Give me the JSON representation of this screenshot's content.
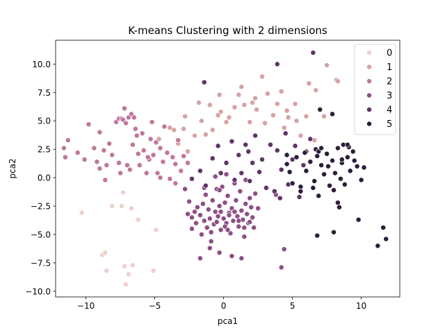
{
  "chart_data": {
    "type": "scatter",
    "title": "K-means Clustering with 2 dimensions",
    "xlabel": "pca1",
    "ylabel": "pca2",
    "xlim": [
      -12.2,
      12.8
    ],
    "ylim": [
      -10.5,
      12.1
    ],
    "xticks": [
      -10,
      -5,
      0,
      5,
      10
    ],
    "yticks": [
      -10.0,
      -7.5,
      -5.0,
      -2.5,
      0.0,
      2.5,
      5.0,
      7.5,
      10.0
    ],
    "xtick_labels": [
      "−10",
      "−5",
      "0",
      "5",
      "10"
    ],
    "ytick_labels": [
      "−10.0",
      "−7.5",
      "−5.0",
      "−2.5",
      "0.0",
      "2.5",
      "5.0",
      "7.5",
      "10.0"
    ],
    "grid": false,
    "legend_position": "top-right",
    "series": [
      {
        "name": "0",
        "color": "#edd1cb",
        "points": [
          [
            -10.3,
            -3.1
          ],
          [
            -8.8,
            -6.8
          ],
          [
            -8.6,
            -6.6
          ],
          [
            -8.5,
            -8.2
          ],
          [
            -8.1,
            -2.5
          ],
          [
            -7.4,
            -2.5
          ],
          [
            -7.3,
            -1.3
          ],
          [
            -7.2,
            -7.8
          ],
          [
            -7.1,
            -9.4
          ],
          [
            -6.9,
            -8.5
          ],
          [
            -6.7,
            -2.7
          ],
          [
            -6.6,
            -7.7
          ],
          [
            -6.2,
            -3.7
          ],
          [
            -5.1,
            -8.2
          ],
          [
            -4.9,
            -4.6
          ]
        ]
      },
      {
        "name": "1",
        "color": "#d8a2a2",
        "points": [
          [
            -4.7,
            3.4
          ],
          [
            -3.9,
            4.4
          ],
          [
            -3.6,
            4.2
          ],
          [
            -3.3,
            3.0
          ],
          [
            -2.9,
            4.3
          ],
          [
            -2.8,
            5.4
          ],
          [
            -2.6,
            2.3
          ],
          [
            -2.1,
            3.7
          ],
          [
            -1.8,
            6.6
          ],
          [
            -1.6,
            5.0
          ],
          [
            -1.3,
            3.8
          ],
          [
            -1.0,
            6.4
          ],
          [
            -0.8,
            4.2
          ],
          [
            -0.4,
            5.5
          ],
          [
            -0.2,
            5.8
          ],
          [
            -0.3,
            7.3
          ],
          [
            0.2,
            4.9
          ],
          [
            0.4,
            5.3
          ],
          [
            0.8,
            6.2
          ],
          [
            1.1,
            7.3
          ],
          [
            1.3,
            8.0
          ],
          [
            1.5,
            6.4
          ],
          [
            1.9,
            4.9
          ],
          [
            2.1,
            6.6
          ],
          [
            2.3,
            7.0
          ],
          [
            2.4,
            6.0
          ],
          [
            2.8,
            8.9
          ],
          [
            3.0,
            4.8
          ],
          [
            3.2,
            7.4
          ],
          [
            3.6,
            5.5
          ],
          [
            3.9,
            6.5
          ],
          [
            4.2,
            7.6
          ],
          [
            4.4,
            4.4
          ],
          [
            4.6,
            5.9
          ],
          [
            4.7,
            5.3
          ],
          [
            5.2,
            6.5
          ],
          [
            5.3,
            5.0
          ],
          [
            5.6,
            3.7
          ],
          [
            6.0,
            5.4
          ],
          [
            6.2,
            8.3
          ],
          [
            6.6,
            3.3
          ],
          [
            6.7,
            7.7
          ],
          [
            7.3,
            5.4
          ],
          [
            7.5,
            9.9
          ],
          [
            8.2,
            8.6
          ],
          [
            8.3,
            8.5
          ]
        ]
      },
      {
        "name": "2",
        "color": "#c0779a",
        "points": [
          [
            -11.6,
            2.6
          ],
          [
            -11.5,
            1.8
          ],
          [
            -11.3,
            3.3
          ],
          [
            -10.6,
            2.2
          ],
          [
            -10.1,
            1.6
          ],
          [
            -9.8,
            4.7
          ],
          [
            -9.4,
            2.6
          ],
          [
            -9.2,
            1.4
          ],
          [
            -9.0,
            4.0
          ],
          [
            -8.7,
            2.4
          ],
          [
            -8.5,
            1.1
          ],
          [
            -8.3,
            3.0
          ],
          [
            -8.1,
            2.0
          ],
          [
            -7.8,
            4.9
          ],
          [
            -7.6,
            5.2
          ],
          [
            -7.4,
            5.2
          ],
          [
            -7.3,
            5.1
          ],
          [
            -7.2,
            6.1
          ],
          [
            -7.1,
            4.8
          ],
          [
            -7.0,
            1.1
          ],
          [
            -6.9,
            5.3
          ],
          [
            -6.7,
            5.6
          ],
          [
            -6.6,
            2.9
          ],
          [
            -6.5,
            5.3
          ],
          [
            -6.4,
            4.3
          ],
          [
            -6.2,
            2.1
          ],
          [
            -6.1,
            1.1
          ],
          [
            -5.9,
            3.9
          ],
          [
            -5.8,
            2.4
          ],
          [
            -5.6,
            0.4
          ],
          [
            -5.4,
            1.6
          ],
          [
            -5.3,
            3.4
          ],
          [
            -5.1,
            2.0
          ],
          [
            -4.9,
            3.1
          ],
          [
            -4.8,
            0.4
          ],
          [
            -4.6,
            2.6
          ],
          [
            -4.4,
            1.4
          ],
          [
            -4.3,
            4.5
          ],
          [
            -4.1,
            2.2
          ],
          [
            -3.9,
            -0.1
          ],
          [
            -3.7,
            1.8
          ],
          [
            -3.5,
            1.2
          ],
          [
            -3.3,
            3.3
          ],
          [
            -3.1,
            0.6
          ],
          [
            -2.9,
            1.9
          ],
          [
            -7.6,
            1.3
          ],
          [
            -6.8,
            0.7
          ],
          [
            -5.5,
            1.8
          ],
          [
            -8.6,
            -0.2
          ],
          [
            -9.0,
            0.8
          ],
          [
            -4.6,
            0.0
          ],
          [
            -3.5,
            -0.5
          ],
          [
            -5.2,
            4.9
          ],
          [
            -6.3,
            3.7
          ],
          [
            -7.5,
            0.4
          ],
          [
            -2.6,
            1.3
          ]
        ]
      },
      {
        "name": "3",
        "color": "#8e4f84",
        "points": [
          [
            -2.8,
            -1.0
          ],
          [
            -2.5,
            -2.1
          ],
          [
            -2.3,
            -3.5
          ],
          [
            -2.1,
            -3.0
          ],
          [
            -2.0,
            -4.0
          ],
          [
            -1.9,
            -2.6
          ],
          [
            -1.7,
            -3.3
          ],
          [
            -1.6,
            -5.0
          ],
          [
            -1.5,
            -2.3
          ],
          [
            -1.4,
            -3.8
          ],
          [
            -1.3,
            -1.5
          ],
          [
            -1.2,
            -4.4
          ],
          [
            -1.1,
            -2.8
          ],
          [
            -1.0,
            -3.6
          ],
          [
            -0.9,
            -5.6
          ],
          [
            -0.8,
            -2.0
          ],
          [
            -0.7,
            -4.1
          ],
          [
            -0.6,
            -3.0
          ],
          [
            -0.5,
            -1.0
          ],
          [
            -0.4,
            -3.4
          ],
          [
            -0.3,
            -2.5
          ],
          [
            -0.2,
            -4.6
          ],
          [
            -0.1,
            -0.8
          ],
          [
            0.0,
            -3.6
          ],
          [
            0.1,
            -2.2
          ],
          [
            0.2,
            -4.0
          ],
          [
            0.3,
            -1.6
          ],
          [
            0.4,
            -3.1
          ],
          [
            0.5,
            -4.9
          ],
          [
            0.6,
            -2.7
          ],
          [
            0.7,
            -3.8
          ],
          [
            0.8,
            -0.5
          ],
          [
            0.9,
            -2.0
          ],
          [
            1.0,
            -3.4
          ],
          [
            1.1,
            -4.3
          ],
          [
            1.2,
            -1.2
          ],
          [
            1.3,
            -2.9
          ],
          [
            1.4,
            -3.7
          ],
          [
            1.5,
            -5.2
          ],
          [
            1.6,
            -2.3
          ],
          [
            1.7,
            -3.2
          ],
          [
            1.8,
            -4.0
          ],
          [
            1.9,
            -1.8
          ],
          [
            2.0,
            -2.6
          ],
          [
            2.1,
            -3.5
          ],
          [
            2.2,
            -4.4
          ],
          [
            2.3,
            -1.4
          ],
          [
            -0.3,
            -6.6
          ],
          [
            0.6,
            -6.9
          ],
          [
            1.3,
            -7.1
          ],
          [
            -1.7,
            -7.1
          ],
          [
            -1.0,
            -6.2
          ],
          [
            0.1,
            -4.3
          ],
          [
            -0.5,
            -3.9
          ],
          [
            0.4,
            -3.3
          ],
          [
            0.8,
            -3.0
          ],
          [
            1.1,
            -3.8
          ],
          [
            -0.2,
            -3.0
          ],
          [
            0.3,
            -4.6
          ],
          [
            1.9,
            -3.9
          ],
          [
            2.5,
            -2.7
          ],
          [
            -2.3,
            -4.5
          ],
          [
            -2.6,
            -3.2
          ],
          [
            -1.4,
            -0.9
          ],
          [
            -0.6,
            0.1
          ],
          [
            0.2,
            0.3
          ],
          [
            -0.3,
            -1.1
          ],
          [
            1.6,
            -0.2
          ],
          [
            -0.9,
            -4.8
          ],
          [
            1.5,
            -4.4
          ],
          [
            4.4,
            -6.3
          ],
          [
            4.2,
            -7.9
          ],
          [
            3.8,
            -1.5
          ]
        ]
      },
      {
        "name": "4",
        "color": "#5e3565",
        "points": [
          [
            -1.4,
            8.4
          ],
          [
            -2.3,
            -0.1
          ],
          [
            -1.7,
            0.6
          ],
          [
            -1.3,
            -0.7
          ],
          [
            -0.8,
            1.7
          ],
          [
            -0.4,
            2.8
          ],
          [
            -0.2,
            0.4
          ],
          [
            0.2,
            1.3
          ],
          [
            0.6,
            3.2
          ],
          [
            0.8,
            -0.2
          ],
          [
            1.1,
            2.0
          ],
          [
            1.3,
            0.4
          ],
          [
            1.6,
            2.9
          ],
          [
            1.9,
            -0.3
          ],
          [
            2.1,
            1.3
          ],
          [
            2.3,
            3.7
          ],
          [
            2.6,
            0.5
          ],
          [
            2.8,
            1.6
          ],
          [
            3.1,
            -0.9
          ],
          [
            3.4,
            2.9
          ],
          [
            3.7,
            -1.2
          ],
          [
            3.9,
            2.4
          ],
          [
            4.2,
            0.7
          ],
          [
            4.5,
            3.9
          ],
          [
            4.7,
            -0.6
          ],
          [
            5.0,
            1.6
          ],
          [
            5.2,
            2.8
          ],
          [
            5.5,
            -1.7
          ],
          [
            5.8,
            1.1
          ],
          [
            6.0,
            2.3
          ],
          [
            6.3,
            3.4
          ],
          [
            6.5,
            11.0
          ],
          [
            3.9,
            10.0
          ],
          [
            1.8,
            2.3
          ],
          [
            4.1,
            -1.8
          ]
        ]
      },
      {
        "name": "5",
        "color": "#2d1d39",
        "points": [
          [
            4.6,
            2.0
          ],
          [
            4.6,
            1.2
          ],
          [
            4.8,
            0.5
          ],
          [
            5.0,
            -0.5
          ],
          [
            5.3,
            1.8
          ],
          [
            5.6,
            -0.8
          ],
          [
            5.9,
            2.2
          ],
          [
            6.0,
            0.6
          ],
          [
            6.3,
            1.4
          ],
          [
            6.6,
            -0.3
          ],
          [
            6.7,
            2.5
          ],
          [
            6.9,
            -1.6
          ],
          [
            7.1,
            1.1
          ],
          [
            7.3,
            0.3
          ],
          [
            7.5,
            2.1
          ],
          [
            7.7,
            -0.7
          ],
          [
            7.9,
            1.5
          ],
          [
            8.1,
            0.4
          ],
          [
            8.3,
            2.6
          ],
          [
            8.5,
            -0.1
          ],
          [
            8.6,
            1.3
          ],
          [
            8.7,
            2.9
          ],
          [
            8.8,
            -0.6
          ],
          [
            9.0,
            1.8
          ],
          [
            9.2,
            0.6
          ],
          [
            9.4,
            2.3
          ],
          [
            9.7,
            1.0
          ],
          [
            10.0,
            -0.2
          ],
          [
            10.2,
            0.9
          ],
          [
            6.9,
            2.3
          ],
          [
            7.1,
            2.6
          ],
          [
            7.6,
            1.0
          ],
          [
            8.0,
            -1.1
          ],
          [
            8.3,
            -2.2
          ],
          [
            8.6,
            1.6
          ],
          [
            9.1,
            2.7
          ],
          [
            9.5,
            1.5
          ],
          [
            6.5,
            -0.9
          ],
          [
            6.8,
            -5.1
          ],
          [
            8.0,
            -4.8
          ],
          [
            7.9,
            5.6
          ],
          [
            7.0,
            6.0
          ],
          [
            6.8,
            1.9
          ],
          [
            5.6,
            -1.2
          ],
          [
            9.8,
            -3.7
          ],
          [
            11.2,
            -6.0
          ],
          [
            11.6,
            -4.4
          ],
          [
            11.8,
            -5.4
          ],
          [
            8.4,
            -2.6
          ],
          [
            9.0,
            2.9
          ]
        ]
      }
    ]
  }
}
